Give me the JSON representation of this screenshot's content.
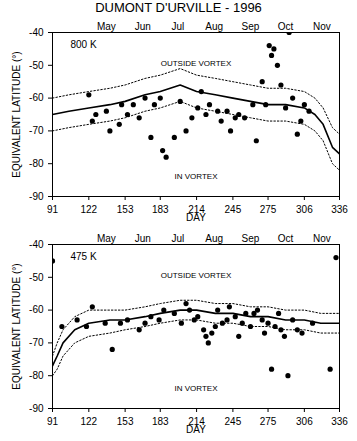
{
  "chart_data": [
    {
      "type": "scatter",
      "title": "DUMONT D'URVILLE - 1996",
      "panel_label": "800 K",
      "annotations": [
        "OUTSIDE VORTEX",
        "IN VORTEX"
      ],
      "x_label": "DAY",
      "y_label": "EQUIVALENT LATITUDE (°)",
      "xlim": [
        91,
        336
      ],
      "xticks": [
        91,
        122,
        153,
        183,
        214,
        245,
        275,
        306,
        336
      ],
      "x2ticks": [
        {
          "value": 137,
          "label": "May"
        },
        {
          "value": 168,
          "label": "Jun"
        },
        {
          "value": 198,
          "label": "Jul"
        },
        {
          "value": 229,
          "label": "Aug"
        },
        {
          "value": 260,
          "label": "Sep"
        },
        {
          "value": 290,
          "label": "Oct"
        },
        {
          "value": 321,
          "label": "Nov"
        }
      ],
      "ylim": [
        -90,
        -40
      ],
      "yticks": [
        -40,
        -50,
        -60,
        -70,
        -80,
        -90
      ],
      "series": [
        {
          "type": "scatter",
          "marker": "circle",
          "color": "#000000",
          "x": [
            122,
            125,
            128,
            137,
            140,
            148,
            150,
            155,
            160,
            165,
            170,
            175,
            178,
            183,
            185,
            188,
            195,
            200,
            205,
            210,
            215,
            218,
            222,
            225,
            232,
            235,
            240,
            243,
            247,
            250,
            255,
            262,
            265,
            270,
            273,
            276,
            278,
            280,
            283,
            286,
            290,
            293,
            296,
            300,
            303,
            306,
            310
          ],
          "values": [
            -59,
            -67,
            -65,
            -64,
            -70,
            -68,
            -62,
            -65,
            -62,
            -66,
            -60,
            -72,
            -62,
            -60,
            -76,
            -78,
            -72,
            -61,
            -70,
            -66,
            -63,
            -58,
            -65,
            -62,
            -64,
            -67,
            -64,
            -70,
            -66,
            -65,
            -66,
            -62,
            -73,
            -55,
            -62,
            -44,
            -47,
            -45,
            -50,
            -56,
            -63,
            -40,
            -60,
            -71,
            -67,
            -62,
            -64
          ]
        },
        {
          "type": "line",
          "line_style": "solid",
          "color": "#000000",
          "x": [
            91,
            105,
            122,
            140,
            153,
            170,
            183,
            200,
            214,
            230,
            245,
            260,
            275,
            290,
            306,
            315,
            322,
            330,
            336
          ],
          "values": [
            -65,
            -64,
            -63,
            -62,
            -61,
            -59,
            -58,
            -56,
            -58,
            -59,
            -60,
            -61,
            -62,
            -62,
            -63,
            -65,
            -68,
            -75,
            -77
          ]
        },
        {
          "type": "line",
          "line_style": "dotted",
          "color": "#000000",
          "x": [
            91,
            105,
            122,
            140,
            153,
            170,
            183,
            200,
            214,
            230,
            245,
            260,
            275,
            290,
            306,
            315,
            322,
            330,
            336
          ],
          "values": [
            -60,
            -59,
            -58,
            -57,
            -56,
            -54,
            -53,
            -51,
            -53,
            -54,
            -55,
            -56,
            -57,
            -57,
            -58,
            -60,
            -63,
            -69,
            -71
          ]
        },
        {
          "type": "line",
          "line_style": "dotted",
          "color": "#000000",
          "x": [
            91,
            105,
            122,
            140,
            153,
            170,
            183,
            200,
            214,
            230,
            245,
            260,
            275,
            290,
            306,
            315,
            322,
            330,
            336
          ],
          "values": [
            -70,
            -69,
            -68,
            -67,
            -66,
            -64,
            -63,
            -61,
            -63,
            -64,
            -65,
            -66,
            -67,
            -67,
            -68,
            -70,
            -73,
            -80,
            -82
          ]
        }
      ]
    },
    {
      "type": "scatter",
      "panel_label": "475 K",
      "annotations": [
        "OUTSIDE VORTEX",
        "IN VORTEX"
      ],
      "x_label": "DAY",
      "y_label": "EQUIVALENT LATITUDE (°)",
      "xlim": [
        91,
        336
      ],
      "xticks": [
        91,
        122,
        153,
        183,
        214,
        245,
        275,
        306,
        336
      ],
      "x2ticks": [
        {
          "value": 137,
          "label": "May"
        },
        {
          "value": 168,
          "label": "Jun"
        },
        {
          "value": 198,
          "label": "Jul"
        },
        {
          "value": 229,
          "label": "Aug"
        },
        {
          "value": 260,
          "label": "Sep"
        },
        {
          "value": 290,
          "label": "Oct"
        },
        {
          "value": 321,
          "label": "Nov"
        }
      ],
      "ylim": [
        -90,
        -40
      ],
      "yticks": [
        -40,
        -50,
        -60,
        -70,
        -80,
        -90
      ],
      "series": [
        {
          "type": "scatter",
          "marker": "circle",
          "color": "#000000",
          "x": [
            91,
            99,
            112,
            120,
            125,
            136,
            142,
            149,
            155,
            165,
            170,
            175,
            182,
            186,
            195,
            201,
            205,
            208,
            212,
            215,
            220,
            222,
            224,
            227,
            230,
            232,
            236,
            240,
            242,
            247,
            250,
            253,
            256,
            260,
            263,
            266,
            270,
            272,
            275,
            278,
            281,
            284,
            286,
            289,
            292,
            296,
            300,
            304,
            313,
            328,
            333
          ],
          "values": [
            -45,
            -65,
            -63,
            -65,
            -59,
            -64,
            -72,
            -64,
            -63,
            -66,
            -64,
            -62,
            -63,
            -60,
            -61,
            -64,
            -58,
            -60,
            -63,
            -62,
            -66,
            -68,
            -70,
            -67,
            -65,
            -60,
            -64,
            -63,
            -59,
            -62,
            -68,
            -64,
            -61,
            -65,
            -61,
            -60,
            -63,
            -67,
            -64,
            -78,
            -65,
            -61,
            -66,
            -68,
            -80,
            -63,
            -66,
            -67,
            -64,
            -78,
            -44
          ]
        },
        {
          "type": "line",
          "line_style": "solid",
          "color": "#000000",
          "x": [
            91,
            95,
            100,
            110,
            122,
            140,
            153,
            170,
            183,
            200,
            214,
            230,
            245,
            260,
            275,
            290,
            306,
            320,
            336
          ],
          "values": [
            -77,
            -74,
            -70,
            -66,
            -64,
            -63,
            -63,
            -62,
            -61,
            -60,
            -60,
            -61,
            -61,
            -62,
            -62,
            -63,
            -63,
            -64,
            -64
          ]
        },
        {
          "type": "line",
          "line_style": "dotted",
          "color": "#000000",
          "x": [
            91,
            95,
            100,
            110,
            122,
            140,
            153,
            170,
            183,
            200,
            214,
            230,
            245,
            260,
            275,
            290,
            306,
            320,
            336
          ],
          "values": [
            -74,
            -70,
            -66,
            -62,
            -60,
            -60,
            -60,
            -59,
            -58,
            -57,
            -57,
            -58,
            -58,
            -59,
            -59,
            -60,
            -60,
            -61,
            -61
          ]
        },
        {
          "type": "line",
          "line_style": "dotted",
          "color": "#000000",
          "x": [
            91,
            95,
            100,
            110,
            122,
            140,
            153,
            170,
            183,
            200,
            214,
            230,
            245,
            260,
            275,
            290,
            306,
            320,
            336
          ],
          "values": [
            -80,
            -78,
            -74,
            -70,
            -68,
            -67,
            -66,
            -65,
            -64,
            -63,
            -63,
            -64,
            -64,
            -65,
            -65,
            -66,
            -66,
            -67,
            -67
          ]
        }
      ]
    }
  ]
}
